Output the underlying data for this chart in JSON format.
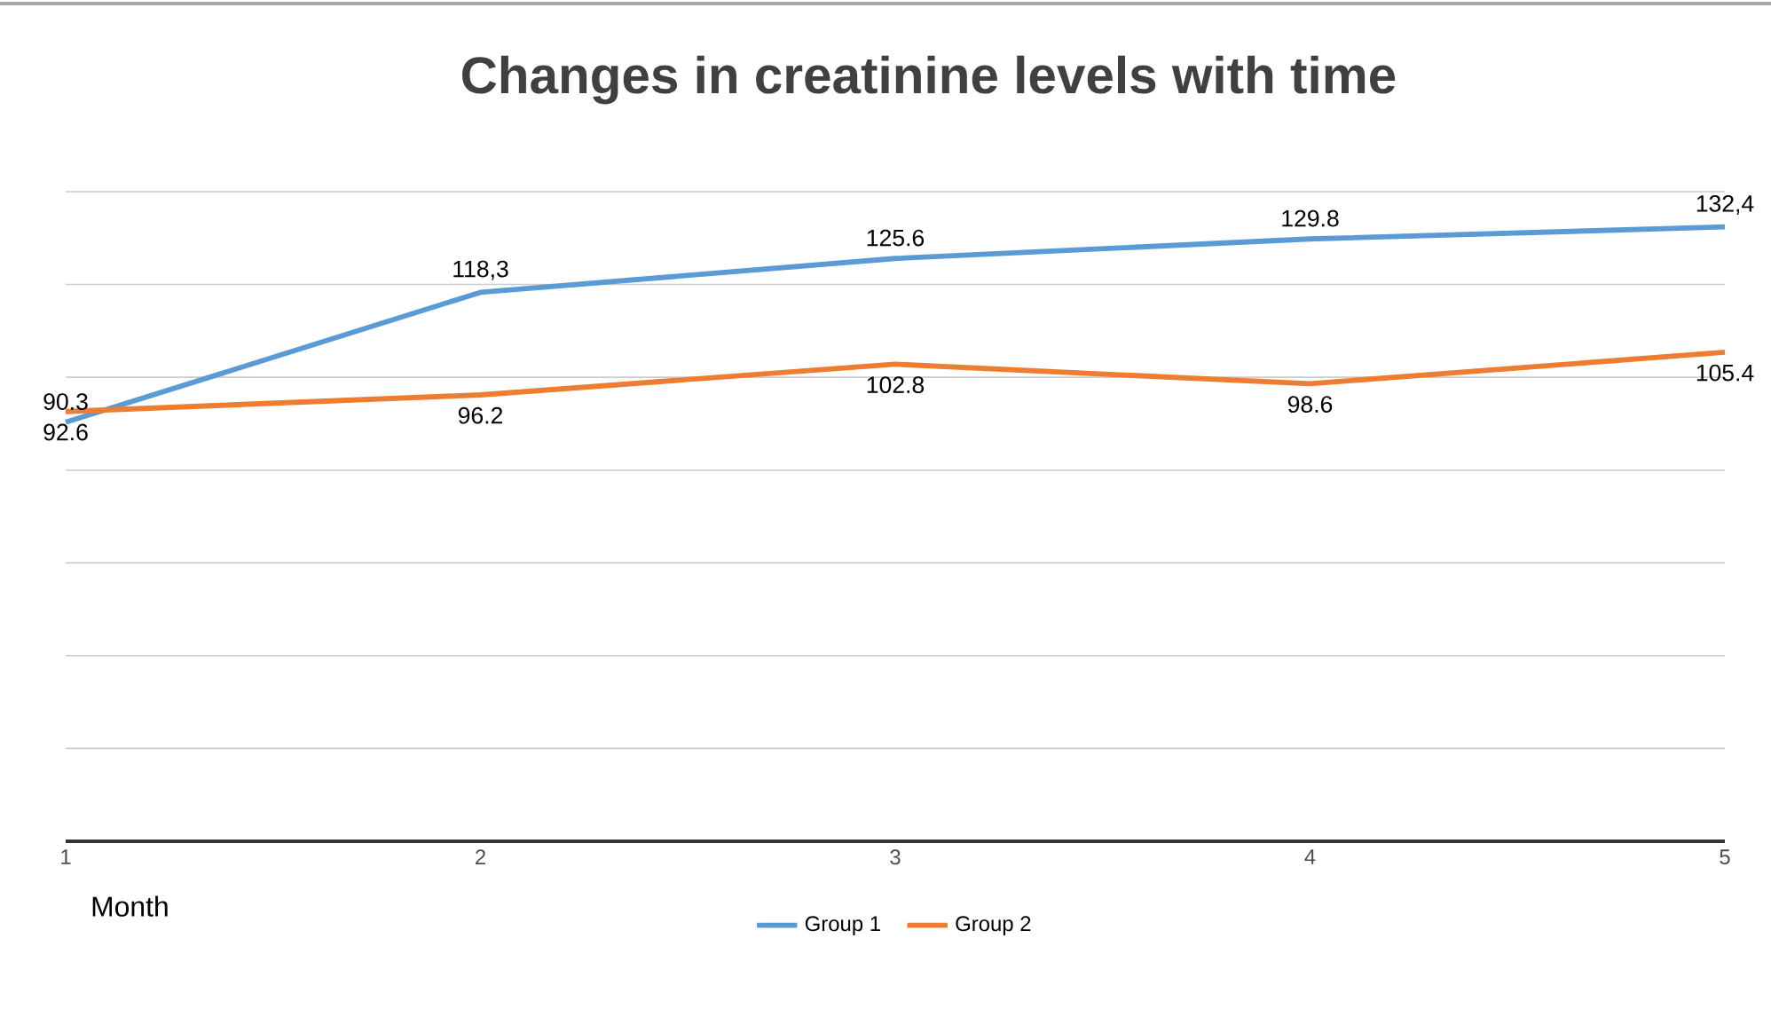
{
  "chart_data": {
    "type": "line",
    "title": "Changes in creatinine levels with time",
    "xlabel": "Month",
    "x": [
      1,
      2,
      3,
      4,
      5
    ],
    "xlim": [
      1,
      5
    ],
    "xticks": [
      1,
      2,
      3,
      4,
      5
    ],
    "ylim": [
      0,
      140
    ],
    "yticks": [
      {
        "value": 0,
        "label": null
      },
      {
        "value": 20,
        "label": null
      },
      {
        "value": 40,
        "label": null
      },
      {
        "value": 60,
        "label": null
      },
      {
        "value": 80,
        "label": null
      },
      {
        "value": 100,
        "label": null
      },
      {
        "value": 120,
        "label": null
      },
      {
        "value": 140,
        "label": null
      }
    ],
    "tick_labels": "x",
    "grid": "y",
    "legend": "bottom",
    "marker": "none",
    "line_style": "solid",
    "series": [
      {
        "name": "Group 1",
        "color": "#5b9bd5",
        "values": [
          90.3,
          118.3,
          125.6,
          129.8,
          132.4
        ],
        "value_labels": [
          "90.3",
          "118,3",
          "125.6",
          "129.8",
          "132,4"
        ]
      },
      {
        "name": "Group 2",
        "color": "#ed7d31",
        "values": [
          92.6,
          96.2,
          102.8,
          98.6,
          105.4
        ],
        "value_labels": [
          "92.6",
          "96.2",
          "102.8",
          "98.6",
          "105.4"
        ]
      }
    ]
  }
}
